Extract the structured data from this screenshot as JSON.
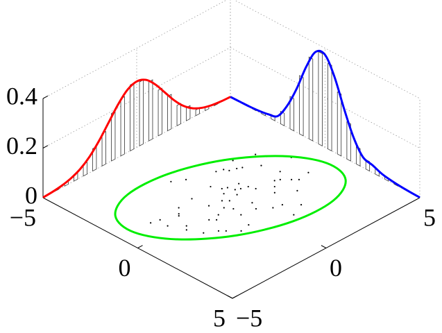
{
  "chart_data": {
    "type": "scatter3d",
    "xlim": [
      -5,
      5
    ],
    "ylim": [
      -5,
      5
    ],
    "zlim": [
      0,
      0.4
    ],
    "xticks": [
      {
        "value": -5,
        "label": "−5"
      },
      0,
      5
    ],
    "yticks": [
      {
        "value": -5,
        "label": "−5"
      },
      0,
      5
    ],
    "zticks": [
      0,
      0.2,
      0.4
    ],
    "grid": true,
    "scatter": {
      "color": "#000000",
      "x": [
        -0.3,
        0.5,
        -1.2,
        0.8,
        -0.1,
        1.4,
        -0.9,
        0.2,
        -1.7,
        1.1,
        0.0,
        -0.6,
        0.9,
        -0.4,
        1.8,
        -1.1,
        0.4,
        -0.2,
        0.7,
        -1.4,
        0.1,
        -0.8,
        1.3,
        -0.5,
        0.6,
        -2.1,
        1.6,
        -0.3,
        0.3,
        -1.0,
        2.2,
        -0.7,
        0.5,
        -1.5,
        1.0,
        -0.1,
        0.8,
        -2.4,
        1.9,
        -0.6,
        0.2,
        -1.3,
        1.2,
        -0.2,
        0.4,
        -0.9,
        2.5,
        -1.8,
        0.6,
        -0.4,
        0.0,
        1.5,
        -1.1,
        0.9,
        -0.5,
        0.3,
        -1.6,
        1.7,
        -0.8,
        0.7
      ],
      "y": [
        0.5,
        -1.2,
        1.8,
        0.3,
        -0.4,
        2.1,
        -1.9,
        1.1,
        0.9,
        -0.6,
        2.6,
        -2.2,
        1.4,
        0.0,
        -0.9,
        3.0,
        -2.8,
        0.7,
        -1.5,
        1.3,
        -0.2,
        2.4,
        -2.0,
        0.9,
        1.7,
        -0.3,
        0.6,
        -3.1,
        2.0,
        -1.1,
        1.5,
        0.2,
        -1.7,
        2.8,
        -2.5,
        1.0,
        3.3,
        -0.8,
        -1.4,
        0.4,
        -2.6,
        1.6,
        0.1,
        -1.0,
        2.2,
        -3.4,
        0.8,
        1.9,
        -0.5,
        3.6,
        0.3,
        -1.8,
        0.0,
        2.7,
        -2.3,
        -0.7,
        1.2,
        1.0,
        -3.0,
        2.5
      ]
    },
    "ellipse": {
      "color": "#00ee00",
      "x": [
        2.13,
        2.85,
        2.8,
        2.0,
        0.65,
        -0.87,
        -2.18,
        -2.91,
        -2.86,
        -2.06,
        -0.71,
        0.82
      ],
      "y": [
        3.94,
        2.54,
        0.47,
        -1.74,
        -3.49,
        -4.31,
        -3.99,
        -2.6,
        -0.52,
        1.68,
        3.43,
        4.26
      ]
    },
    "marginal_x": {
      "color": "#0000ff",
      "x": [
        -5,
        -4.5,
        -4,
        -3.5,
        -3,
        -2.5,
        -2,
        -1.5,
        -1,
        -0.5,
        0,
        0.5,
        1,
        1.5,
        2,
        2.5,
        3,
        3.5,
        4,
        4.5,
        5
      ],
      "values": [
        0.001,
        0.002,
        0.003,
        0.006,
        0.012,
        0.025,
        0.087,
        0.176,
        0.284,
        0.365,
        0.373,
        0.304,
        0.197,
        0.102,
        0.042,
        0.03,
        0.015,
        0.008,
        0.004,
        0.002,
        0.001
      ]
    },
    "marginal_y": {
      "color": "#ff0000",
      "x": [
        -5,
        -4.5,
        -4,
        -3.5,
        -3,
        -2.5,
        -2,
        -1.5,
        -1,
        -0.5,
        0,
        0.5,
        1,
        1.5,
        2,
        2.5,
        3,
        3.5,
        4,
        4.5,
        5
      ],
      "values": [
        0.001,
        0.003,
        0.008,
        0.018,
        0.036,
        0.066,
        0.109,
        0.161,
        0.213,
        0.252,
        0.266,
        0.252,
        0.213,
        0.161,
        0.109,
        0.066,
        0.036,
        0.018,
        0.008,
        0.003,
        0.001
      ]
    },
    "hist_x": {
      "bins": [
        -5,
        -4.5,
        -4,
        -3.5,
        -3,
        -2.5,
        -2,
        -1.5,
        -1,
        -0.5,
        0,
        0.5,
        1,
        1.5,
        2,
        2.5,
        3,
        3.5,
        4,
        4.5,
        5
      ],
      "values": [
        0.001,
        0.002,
        0.004,
        0.009,
        0.018,
        0.05,
        0.13,
        0.235,
        0.33,
        0.372,
        0.345,
        0.25,
        0.15,
        0.07,
        0.038,
        0.022,
        0.011,
        0.006,
        0.003,
        0.001
      ]
    },
    "hist_y": {
      "bins": [
        -5,
        -4.5,
        -4,
        -3.5,
        -3,
        -2.5,
        -2,
        -1.5,
        -1,
        -0.5,
        0,
        0.5,
        1,
        1.5,
        2,
        2.5,
        3,
        3.5,
        4,
        4.5,
        5
      ],
      "values": [
        0.002,
        0.006,
        0.011,
        0.027,
        0.048,
        0.09,
        0.131,
        0.192,
        0.231,
        0.266,
        0.258,
        0.238,
        0.184,
        0.139,
        0.082,
        0.053,
        0.023,
        0.013,
        0.004,
        0.002
      ]
    }
  }
}
